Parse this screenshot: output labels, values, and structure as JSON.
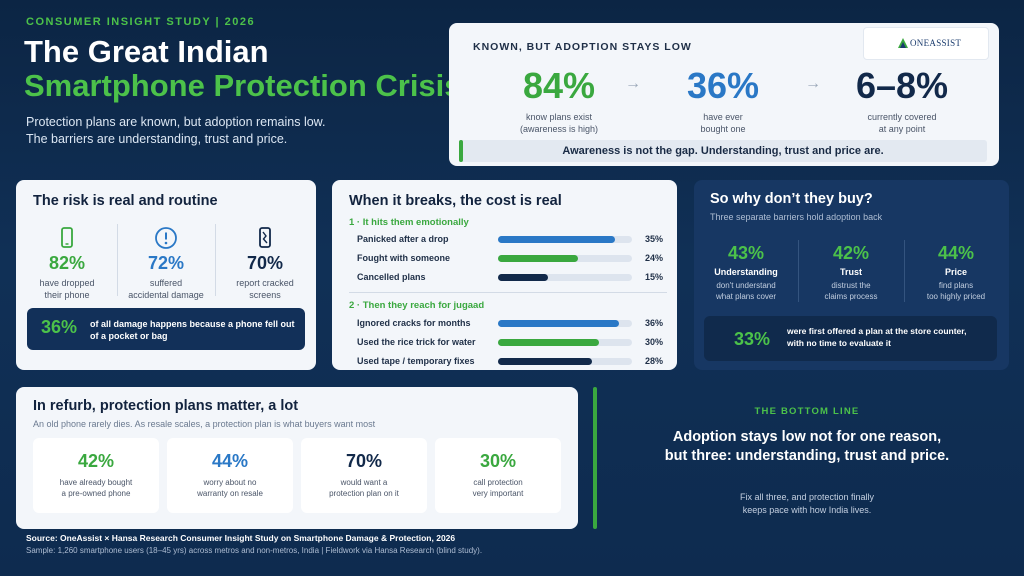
{
  "header": {
    "eyebrow": "CONSUMER INSIGHT STUDY | 2026",
    "title_line1": "The Great Indian",
    "title_line2": "Smartphone Protection Crisis",
    "subtitle_line1": "Protection plans are known, but adoption remains low.",
    "subtitle_line2": "The barriers are understanding, trust and price."
  },
  "known_card": {
    "heading": "KNOWN, BUT ADOPTION STAYS LOW",
    "logo_text": "ONEASSIST",
    "stats": [
      {
        "value": "84%",
        "label_line1": "know plans exist",
        "label_line2": "(awareness is high)",
        "color": "#3aa83f"
      },
      {
        "value": "36%",
        "label_line1": "have ever",
        "label_line2": "bought one",
        "color": "#2a78c6"
      },
      {
        "value": "6–8%",
        "label_line1": "currently covered",
        "label_line2": "at any point",
        "color": "#12294a"
      }
    ],
    "arrow": "→",
    "callout": "Awareness is not the gap. Understanding, trust and price are."
  },
  "risk_card": {
    "heading": "The risk is real and routine",
    "stats": [
      {
        "icon": "phone-icon",
        "value": "82%",
        "label_line1": "have dropped",
        "label_line2": "their phone",
        "color": "#3aa83f"
      },
      {
        "icon": "alert-icon",
        "value": "72%",
        "label_line1": "suffered",
        "label_line2": "accidental damage",
        "color": "#2a78c6"
      },
      {
        "icon": "cracked-phone-icon",
        "value": "70%",
        "label_line1": "report cracked",
        "label_line2": "screens",
        "color": "#12294a"
      }
    ],
    "banner": {
      "value": "36%",
      "text": "of all damage happens because a phone fell out of a pocket or bag"
    }
  },
  "breaks_card": {
    "heading": "When it breaks, the cost is real",
    "section1": "1 · It hits them emotionally",
    "section2": "2 · Then they reach for jugaad",
    "rows1": [
      {
        "label": "Panicked after a drop",
        "value": 35,
        "display": "35%",
        "color": "#2a78c6"
      },
      {
        "label": "Fought with someone",
        "value": 24,
        "display": "24%",
        "color": "#3aa83f"
      },
      {
        "label": "Cancelled plans",
        "value": 15,
        "display": "15%",
        "color": "#12294a"
      }
    ],
    "rows2": [
      {
        "label": "Ignored cracks for months",
        "value": 36,
        "display": "36%",
        "color": "#2a78c6"
      },
      {
        "label": "Used the rice trick for water",
        "value": 30,
        "display": "30%",
        "color": "#3aa83f"
      },
      {
        "label": "Used tape / temporary fixes",
        "value": 28,
        "display": "28%",
        "color": "#12294a"
      }
    ]
  },
  "why_card": {
    "heading": "So why don’t they buy?",
    "subheading": "Three separate barriers hold adoption back",
    "stats": [
      {
        "value": "43%",
        "name": "Understanding",
        "label_line1": "don't understand",
        "label_line2": "what plans cover"
      },
      {
        "value": "42%",
        "name": "Trust",
        "label_line1": "distrust the",
        "label_line2": "claims process"
      },
      {
        "value": "44%",
        "name": "Price",
        "label_line1": "find plans",
        "label_line2": "too highly priced"
      }
    ],
    "banner": {
      "value": "33%",
      "text": "were first offered a plan at the store counter, with no time to evaluate it"
    }
  },
  "refurb_card": {
    "heading": "In refurb, protection plans matter, a lot",
    "subheading": "An old phone rarely dies. As resale scales, a protection plan is what buyers want most",
    "stats": [
      {
        "value": "42%",
        "label_line1": "have already bought",
        "label_line2": "a pre-owned phone",
        "color": "#3aa83f"
      },
      {
        "value": "44%",
        "label_line1": "worry about no",
        "label_line2": "warranty on resale",
        "color": "#2a78c6"
      },
      {
        "value": "70%",
        "label_line1": "would want a",
        "label_line2": "protection plan on it",
        "color": "#12294a"
      },
      {
        "value": "30%",
        "label_line1": "call protection",
        "label_line2": "very important",
        "color": "#3aa83f"
      }
    ]
  },
  "bottom_line": {
    "label": "THE BOTTOM LINE",
    "main": "Adoption stays low not for one reason, but three: understanding, trust and price.",
    "sub_line1": "Fix all three, and protection finally",
    "sub_line2": "keeps pace with how India lives."
  },
  "footer": {
    "source": "Source: OneAssist × Hansa Research Consumer Insight Study on Smartphone Damage & Protection, 2026",
    "sample": "Sample: 1,260 smartphone users (18–45 yrs) across metros and non-metros, India | Fieldwork via Hansa Research (blind study)."
  }
}
